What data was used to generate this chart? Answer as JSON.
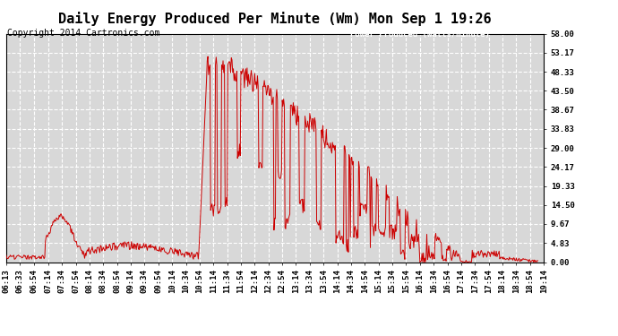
{
  "title": "Daily Energy Produced Per Minute (Wm) Mon Sep 1 19:26",
  "copyright": "Copyright 2014 Cartronics.com",
  "legend_label": "Power Produced (watts/minute)",
  "legend_bg": "#cc0000",
  "legend_fg": "#ffffff",
  "line_color": "#cc0000",
  "bg_color": "#ffffff",
  "plot_bg_color": "#d8d8d8",
  "grid_color": "#ffffff",
  "yticks": [
    0.0,
    4.83,
    9.67,
    14.5,
    19.33,
    24.17,
    29.0,
    33.83,
    38.67,
    43.5,
    48.33,
    53.17,
    58.0
  ],
  "xtick_labels": [
    "06:13",
    "06:33",
    "06:54",
    "07:14",
    "07:34",
    "07:54",
    "08:14",
    "08:34",
    "08:54",
    "09:14",
    "09:34",
    "09:54",
    "10:14",
    "10:34",
    "10:54",
    "11:14",
    "11:34",
    "11:54",
    "12:14",
    "12:34",
    "12:54",
    "13:14",
    "13:34",
    "13:54",
    "14:14",
    "14:34",
    "14:54",
    "15:14",
    "15:34",
    "15:54",
    "16:14",
    "16:34",
    "16:54",
    "17:14",
    "17:34",
    "17:54",
    "18:14",
    "18:34",
    "18:54",
    "19:14"
  ],
  "ymin": 0.0,
  "ymax": 58.0,
  "title_fontsize": 11,
  "copyright_fontsize": 7,
  "tick_fontsize": 6.5
}
